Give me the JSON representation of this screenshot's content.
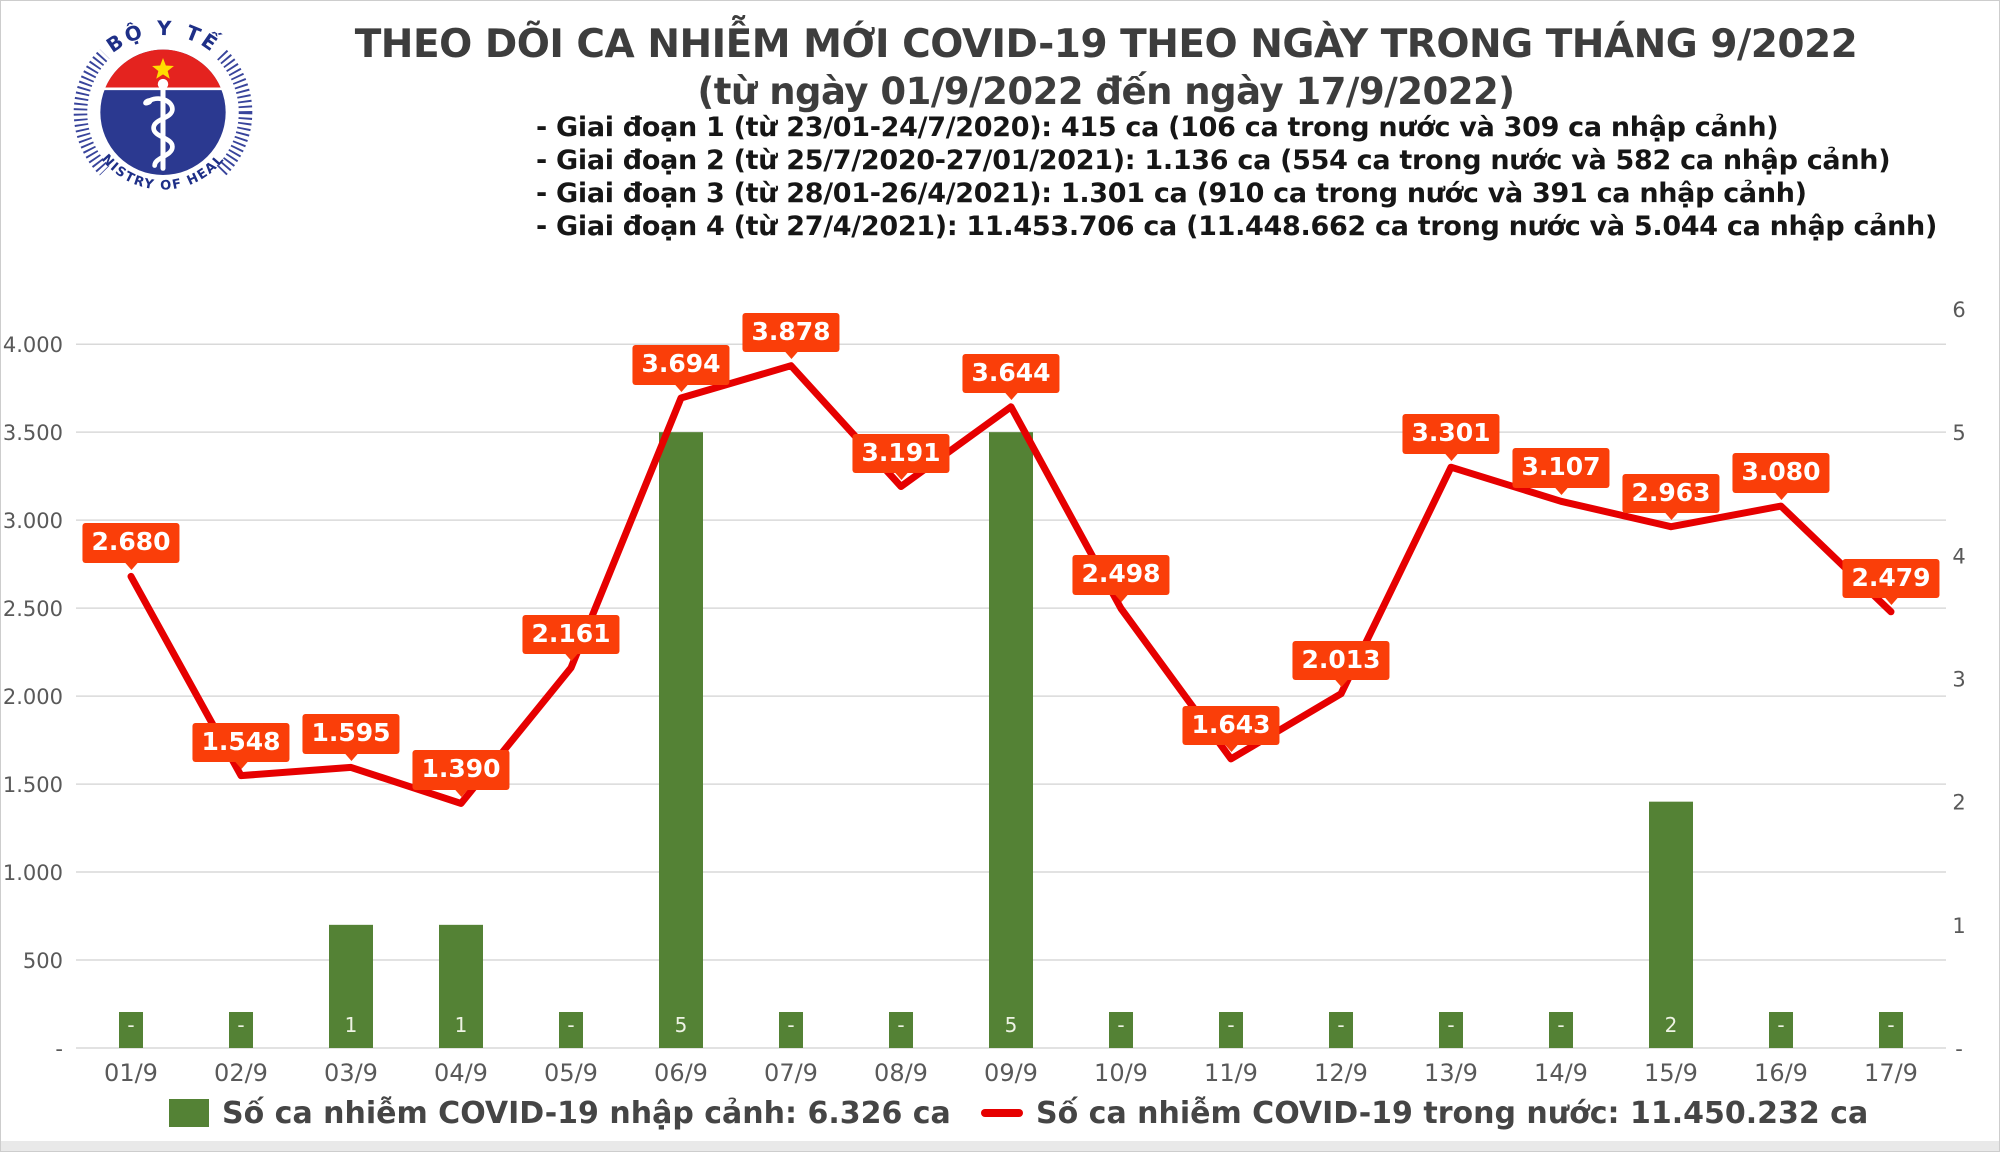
{
  "logo": {
    "top_text": "BỘ Y TẾ",
    "bottom_text": "MINISTRY OF HEALTH"
  },
  "header": {
    "title": "THEO DÕI CA NHIỄM MỚI COVID-19 THEO NGÀY TRONG THÁNG 9/2022",
    "subtitle": "(từ ngày 01/9/2022 đến ngày 17/9/2022)",
    "phases": [
      "- Giai đoạn 1 (từ 23/01-24/7/2020): 415 ca (106 ca trong nước và 309 ca nhập cảnh)",
      "- Giai đoạn 2 (từ 25/7/2020-27/01/2021): 1.136 ca (554 ca trong nước và 582 ca nhập cảnh)",
      "- Giai đoạn 3 (từ 28/01-26/4/2021): 1.301 ca (910 ca trong nước và 391 ca nhập cảnh)",
      "- Giai đoạn 4 (từ 27/4/2021): 11.453.706 ca (11.448.662 ca trong nước và 5.044 ca nhập cảnh)"
    ]
  },
  "legend": {
    "bars_label": "Số ca nhiễm COVID-19 nhập cảnh: 6.326 ca",
    "line_label": "Số ca nhiễm COVID-19 trong nước: 11.450.232 ca"
  },
  "colors": {
    "line": "#e60000",
    "callout": "#fa3e09",
    "bar": "#548235",
    "grid": "#d9d9d9",
    "axis_text": "#595959",
    "bar_label_text": "#eef3e4"
  },
  "chart_data": {
    "type": "bar+line",
    "title": "THEO DÕI CA NHIỄM MỚI COVID-19 THEO NGÀY TRONG THÁNG 9/2022",
    "categories": [
      "01/9",
      "02/9",
      "03/9",
      "04/9",
      "05/9",
      "06/9",
      "07/9",
      "08/9",
      "09/9",
      "10/9",
      "11/9",
      "12/9",
      "13/9",
      "14/9",
      "15/9",
      "16/9",
      "17/9"
    ],
    "series": [
      {
        "name": "Số ca nhiễm COVID-19 nhập cảnh",
        "type": "bar",
        "axis": "right",
        "values": [
          0,
          0,
          1,
          1,
          0,
          5,
          0,
          0,
          5,
          0,
          0,
          0,
          0,
          0,
          2,
          0,
          0
        ],
        "labels": [
          "-",
          "-",
          "1",
          "1",
          "-",
          "5",
          "-",
          "-",
          "5",
          "-",
          "-",
          "-",
          "-",
          "-",
          "2",
          "-",
          "-"
        ]
      },
      {
        "name": "Số ca nhiễm COVID-19 trong nước",
        "type": "line",
        "axis": "left",
        "values": [
          2680,
          1548,
          1595,
          1390,
          2161,
          3694,
          3878,
          3191,
          3644,
          2498,
          1643,
          2013,
          3301,
          3107,
          2963,
          3080,
          2479
        ],
        "labels": [
          "2.680",
          "1.548",
          "1.595",
          "1.390",
          "2.161",
          "3.694",
          "3.878",
          "3.191",
          "3.644",
          "2.498",
          "1.643",
          "2.013",
          "3.301",
          "3.107",
          "2.963",
          "3.080",
          "2.479"
        ]
      }
    ],
    "left_axis": {
      "ticks": [
        {
          "label": "4.000",
          "value": 4000
        },
        {
          "label": "3.500",
          "value": 3500
        },
        {
          "label": "3.000",
          "value": 3000
        },
        {
          "label": "2.500",
          "value": 2500
        },
        {
          "label": "2.000",
          "value": 2000
        },
        {
          "label": "1.500",
          "value": 1500
        },
        {
          "label": "1.000",
          "value": 1000
        },
        {
          "label": "500",
          "value": 500
        },
        {
          "label": "-",
          "value": 0
        }
      ]
    },
    "right_axis": {
      "ticks": [
        {
          "label": "6",
          "value": 6
        },
        {
          "label": "5",
          "value": 5
        },
        {
          "label": "4",
          "value": 4
        },
        {
          "label": "3",
          "value": 3
        },
        {
          "label": "2",
          "value": 2
        },
        {
          "label": "1",
          "value": 1
        },
        {
          "label": "-",
          "value": 0
        }
      ]
    },
    "left_range": [
      0,
      4200
    ],
    "right_range": [
      0,
      6
    ],
    "grid": true,
    "legend_position": "bottom"
  }
}
